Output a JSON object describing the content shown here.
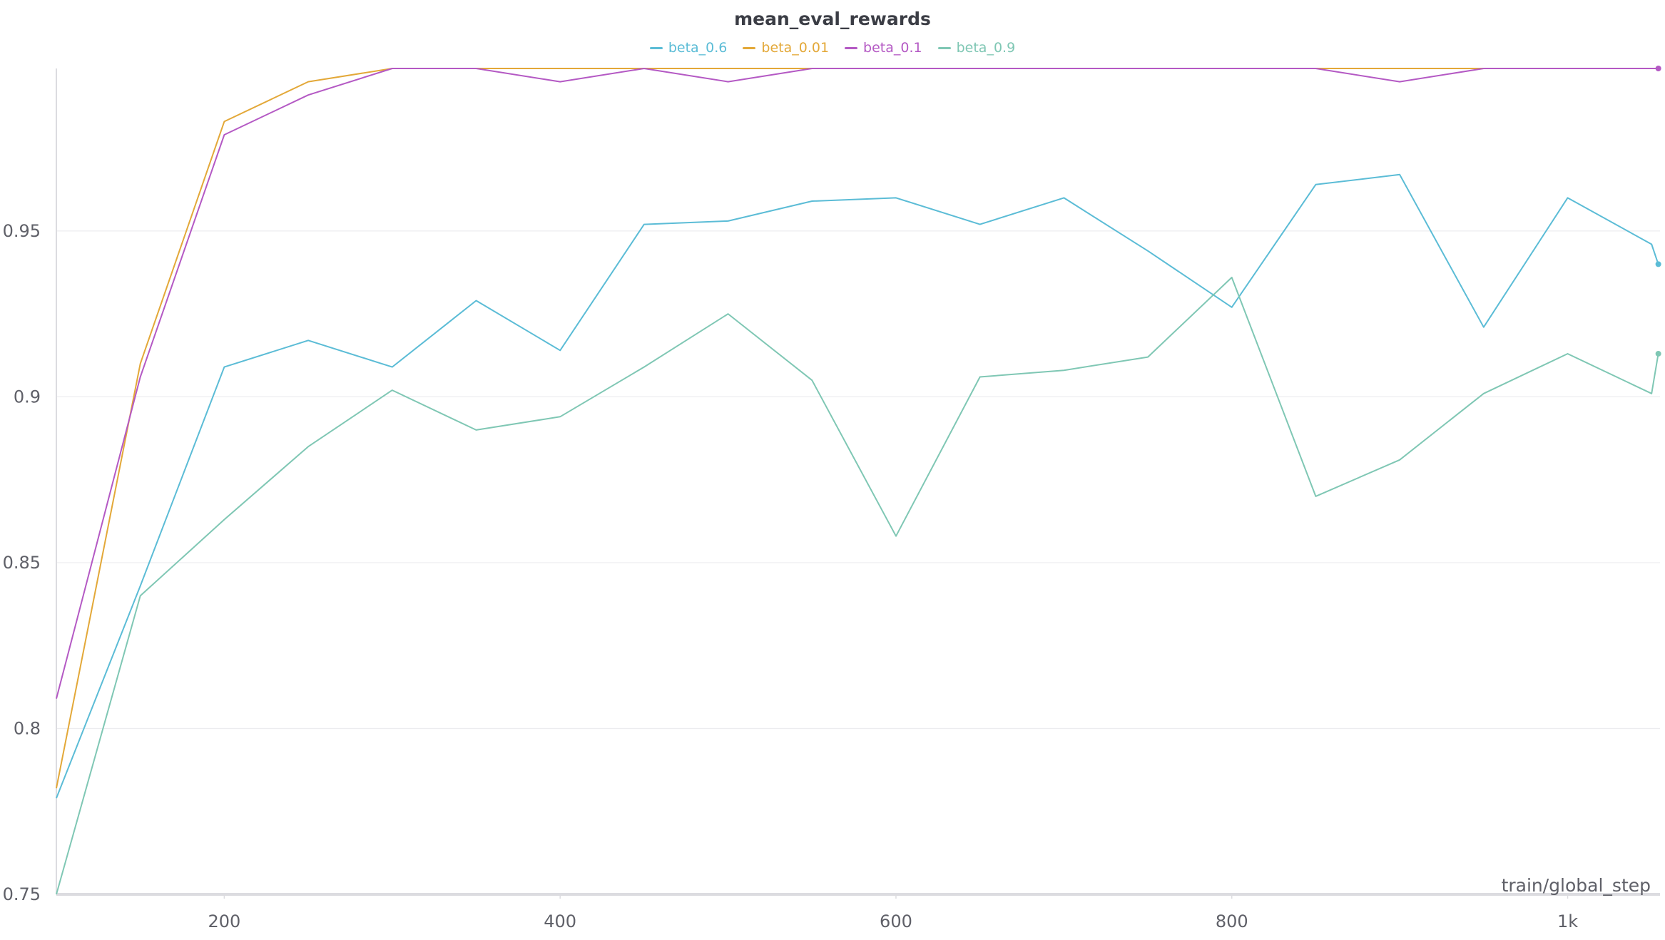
{
  "chart_data": {
    "type": "line",
    "title": "mean_eval_rewards",
    "xlabel": "train/global_step",
    "ylabel": "",
    "xlim": [
      100,
      1055
    ],
    "ylim": [
      0.75,
      0.999
    ],
    "x_ticks": [
      {
        "value": 200,
        "label": "200"
      },
      {
        "value": 400,
        "label": "400"
      },
      {
        "value": 600,
        "label": "600"
      },
      {
        "value": 800,
        "label": "800"
      },
      {
        "value": 1000,
        "label": "1k"
      }
    ],
    "y_ticks": [
      {
        "value": 0.75,
        "label": "0.75"
      },
      {
        "value": 0.8,
        "label": "0.8"
      },
      {
        "value": 0.85,
        "label": "0.85"
      },
      {
        "value": 0.9,
        "label": "0.9"
      },
      {
        "value": 0.95,
        "label": "0.95"
      }
    ],
    "grid": true,
    "legend_position": "top-center",
    "x": [
      100,
      150,
      200,
      250,
      300,
      350,
      400,
      450,
      500,
      550,
      600,
      650,
      700,
      750,
      800,
      850,
      900,
      950,
      1000,
      1050
    ],
    "series": [
      {
        "name": "beta_0.6",
        "color": "#5bbcd6",
        "values": [
          0.779,
          0.843,
          0.909,
          0.917,
          0.909,
          0.929,
          0.914,
          0.952,
          0.953,
          0.959,
          0.96,
          0.952,
          0.96,
          0.944,
          0.927,
          0.964,
          0.967,
          0.921,
          0.96,
          0.946
        ],
        "end_point": [
          1054,
          0.94
        ]
      },
      {
        "name": "beta_0.01",
        "color": "#e3a838",
        "values": [
          0.782,
          0.91,
          0.983,
          0.995,
          0.999,
          0.999,
          0.999,
          0.999,
          0.999,
          0.999,
          0.999,
          0.999,
          0.999,
          0.999,
          0.999,
          0.999,
          0.999,
          0.999,
          0.999,
          0.999
        ],
        "end_point": null
      },
      {
        "name": "beta_0.1",
        "color": "#b459c4",
        "values": [
          0.809,
          0.906,
          0.979,
          0.991,
          0.999,
          0.999,
          0.995,
          0.999,
          0.995,
          0.999,
          0.999,
          0.999,
          0.999,
          0.999,
          0.999,
          0.999,
          0.995,
          0.999,
          0.999,
          0.999
        ],
        "end_point": [
          1054,
          0.999
        ]
      },
      {
        "name": "beta_0.9",
        "color": "#7fc7b4",
        "values": [
          0.75,
          0.84,
          0.863,
          0.885,
          0.902,
          0.89,
          0.894,
          0.909,
          0.925,
          0.905,
          0.858,
          0.906,
          0.908,
          0.912,
          0.936,
          0.87,
          0.881,
          0.901,
          0.913,
          0.901
        ],
        "end_point": [
          1054,
          0.913
        ]
      }
    ]
  }
}
